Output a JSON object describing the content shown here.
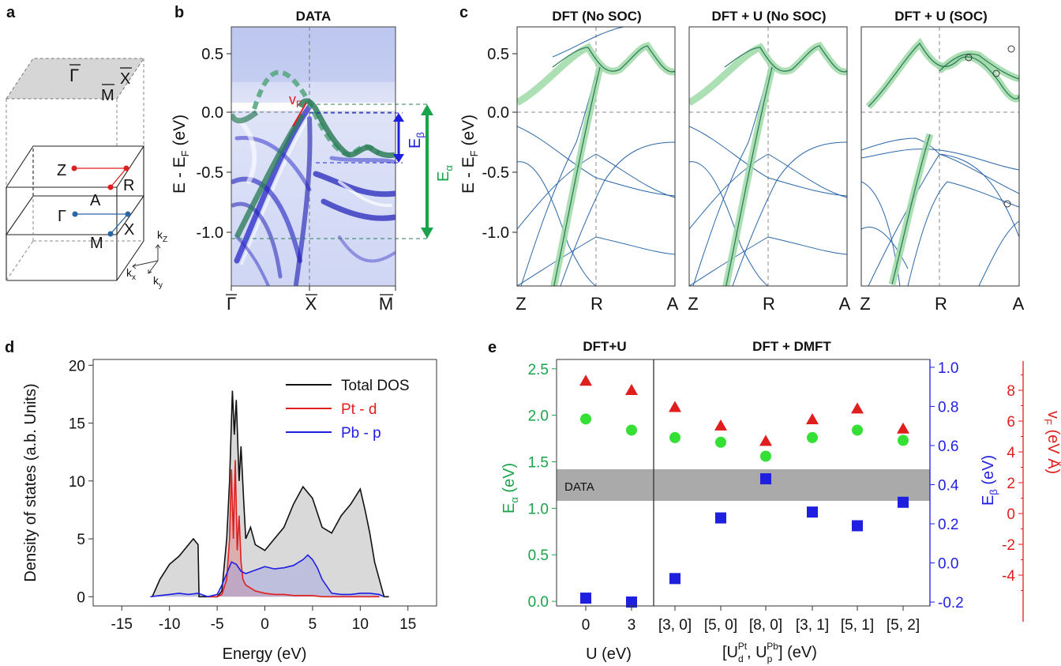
{
  "colors": {
    "green": "#1aa34a",
    "blue": "#1f1fe0",
    "red": "#e01e1e",
    "band_dark": "#2f7d5b",
    "band_light": "#9fd9a7",
    "dft_line": "#2a66a6",
    "gray_fill": "#cfcfcf"
  },
  "panel_a": {
    "label": "a",
    "surface_points": [
      "Γ",
      "M",
      "X"
    ],
    "bulk_points": [
      "Z",
      "R",
      "A",
      "Γ",
      "X",
      "M"
    ],
    "axes": {
      "kz": "k",
      "kz_sub": "Z",
      "kx": "k",
      "kx_sub": "x",
      "ky": "k",
      "ky_sub": "y"
    }
  },
  "panel_b": {
    "label": "b",
    "title": "DATA",
    "ylabel_main": "E - E",
    "ylabel_sub": "F",
    "ylabel_unit": " (eV)",
    "yticks": [
      "0.5",
      "0.0",
      "-0.5",
      "-1.0"
    ],
    "xticks": [
      "Γ",
      "X",
      "M"
    ],
    "vf_label": "v",
    "vf_sub": "F",
    "e_beta": "E",
    "e_beta_sub": "β",
    "e_alpha": "E",
    "e_alpha_sub": "α"
  },
  "panel_c": {
    "label": "c",
    "ylabel_main": "E - E",
    "ylabel_sub": "F",
    "ylabel_unit": " (eV)",
    "yticks": [
      "0.5",
      "0.0",
      "-0.5",
      "-1.0"
    ],
    "subpanels": [
      {
        "title": "DFT  (No SOC)",
        "xticks": [
          "Z",
          "R",
          "A"
        ]
      },
      {
        "title": "DFT + U (No SOC)",
        "xticks": [
          "Z",
          "R",
          "A"
        ]
      },
      {
        "title": "DFT + U (SOC)",
        "xticks": [
          "Z",
          "R",
          "A"
        ]
      }
    ]
  },
  "chart_data": [
    {
      "type": "area",
      "panel": "d",
      "title": "",
      "xlabel": "Energy (eV)",
      "ylabel": "Density of states (a.b. Units)",
      "xlim": [
        -18,
        18
      ],
      "ylim": [
        -0.8,
        20.5
      ],
      "xticks": [
        "-15",
        "-10",
        "-5",
        "0",
        "5",
        "10",
        "15"
      ],
      "yticks": [
        "0",
        "5",
        "10",
        "15",
        "20"
      ],
      "legend": [
        "Total DOS",
        "Pt - d",
        "Pb - p"
      ],
      "series": [
        {
          "name": "Total DOS",
          "color": "#111111",
          "x": [
            -11.8,
            -11,
            -10,
            -9,
            -8,
            -7.5,
            -7,
            -6.9,
            -6.5,
            -5,
            -4.5,
            -4,
            -3.7,
            -3.4,
            -3.2,
            -3,
            -2.7,
            -2.5,
            -2.2,
            -2,
            -1.5,
            -1,
            0,
            1,
            2,
            3,
            4,
            5,
            6,
            7,
            8,
            9,
            10,
            10.5,
            11,
            11.5,
            12,
            12.5,
            13
          ],
          "y": [
            0,
            1.5,
            2.8,
            3.5,
            4.5,
            5.0,
            4.5,
            0,
            0,
            0,
            0.5,
            5,
            10,
            17.8,
            14,
            17,
            10,
            13,
            8,
            5,
            6,
            4.5,
            4,
            5,
            6,
            8,
            9.5,
            8.5,
            6,
            5.5,
            7,
            8,
            9.3,
            7.5,
            5.5,
            3,
            1.5,
            0,
            0
          ]
        },
        {
          "name": "Pt - d",
          "color": "#e01e1e",
          "x": [
            -6,
            -5,
            -4.5,
            -4,
            -3.7,
            -3.5,
            -3.3,
            -3.1,
            -2.9,
            -2.7,
            -2.5,
            -2.3,
            -2,
            -1,
            0,
            1,
            2,
            3,
            4,
            5,
            6,
            8,
            10,
            12
          ],
          "y": [
            0,
            0,
            0.2,
            1.5,
            5,
            11,
            5,
            11.8,
            4,
            7,
            3,
            1.5,
            1,
            0.5,
            0.3,
            0.2,
            0.2,
            0.1,
            0.1,
            0.1,
            0,
            0,
            0,
            0
          ]
        },
        {
          "name": "Pb - p",
          "color": "#1f1fe0",
          "x": [
            -12,
            -11,
            -10,
            -9,
            -8,
            -7,
            -6,
            -5,
            -4.5,
            -4,
            -3.5,
            -3,
            -2.5,
            -2,
            -1,
            0,
            1,
            2,
            3,
            4,
            4.5,
            5,
            5.5,
            6,
            7,
            8,
            9,
            10,
            11,
            12,
            12.5
          ],
          "y": [
            0,
            0.1,
            0.2,
            0.3,
            0.2,
            0.3,
            0,
            0.2,
            1,
            2,
            3,
            2.8,
            2.2,
            2,
            2.3,
            2.6,
            2.4,
            2.5,
            2.7,
            3.2,
            3.6,
            3.2,
            2.5,
            1.5,
            0.3,
            0.2,
            0.2,
            0.3,
            0.3,
            0.2,
            0
          ]
        }
      ]
    },
    {
      "type": "scatter",
      "panel": "e",
      "groups": [
        "DFT+U",
        "DFT + DMFT"
      ],
      "categories": [
        "0",
        "3",
        "[3, 0]",
        "[5, 0]",
        "[8, 0]",
        "[3, 1]",
        "[5, 1]",
        "[5, 2]"
      ],
      "xlabel_left": "U (eV)",
      "xlabel_right": "[U",
      "xlabel_right_d": "d",
      "xlabel_right_pt": "Pt",
      "xlabel_right_comma": ", U",
      "xlabel_right_p": "p",
      "xlabel_right_pb": "Pb",
      "xlabel_right_end": "]  (eV)",
      "band_label": "DATA",
      "axes": [
        {
          "name": "E_alpha",
          "label": "E",
          "sub": "α",
          "unit": " (eV)",
          "color": "#1aa34a",
          "ylim": [
            -0.05,
            2.6
          ],
          "ticks": [
            "0.0",
            "0.5",
            "1.0",
            "1.5",
            "2.0",
            "2.5"
          ]
        },
        {
          "name": "E_beta",
          "label": "E",
          "sub": "β",
          "unit": " (eV)",
          "color": "#1f1fe0",
          "ylim": [
            -0.22,
            1.04
          ],
          "ticks": [
            "-0.2",
            "0.0",
            "0.2",
            "0.4",
            "0.6",
            "0.8",
            "1.0"
          ]
        },
        {
          "name": "v_F",
          "label": "v",
          "sub": "F",
          "unit": " (eV Å)",
          "color": "#e01e1e",
          "ylim": [
            -6,
            10
          ],
          "ticks": [
            "-4",
            "-2",
            "0",
            "2",
            "4",
            "6",
            "8"
          ]
        }
      ],
      "data_band_E_alpha": [
        1.08,
        1.42
      ],
      "series": [
        {
          "name": "E_alpha",
          "marker": "circle",
          "values": [
            1.96,
            1.84,
            1.76,
            1.71,
            1.56,
            1.76,
            1.84,
            1.73
          ]
        },
        {
          "name": "E_beta",
          "marker": "square",
          "values": [
            -0.18,
            -0.2,
            -0.08,
            0.23,
            0.43,
            0.26,
            0.19,
            0.31
          ]
        },
        {
          "name": "v_F",
          "marker": "triangle",
          "values": [
            8.6,
            8.0,
            6.9,
            5.7,
            4.7,
            6.1,
            6.8,
            5.5
          ]
        }
      ]
    }
  ]
}
